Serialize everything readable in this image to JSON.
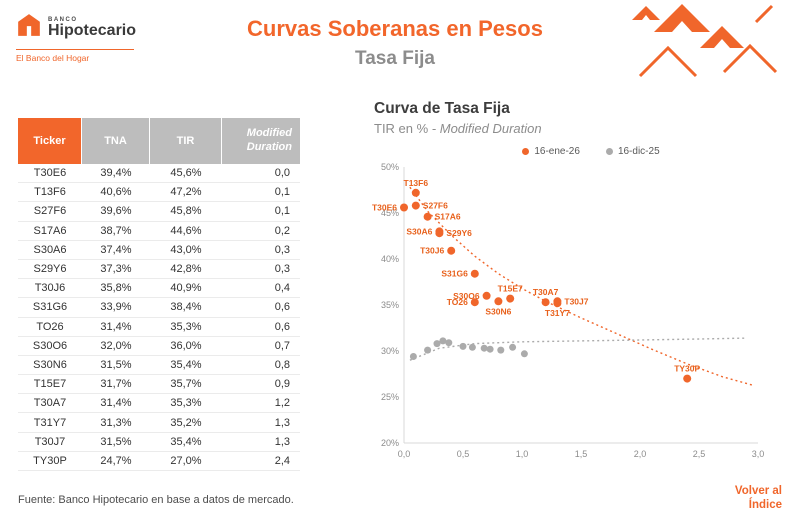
{
  "colors": {
    "accent": "#F0662B",
    "series_current": "#F0662B",
    "series_previous": "#ABABAB",
    "table_header_gray": "#BDBDBD"
  },
  "header": {
    "logo_small": "BANCO",
    "logo_name": "Hipotecario",
    "tagline": "El Banco del Hogar",
    "title": "Curvas Soberanas en Pesos",
    "subtitle": "Tasa Fija"
  },
  "table": {
    "headers": [
      "Ticker",
      "TNA",
      "TIR",
      "Modified Duration"
    ],
    "rows": [
      [
        "T30E6",
        "39,4%",
        "45,6%",
        "0,0"
      ],
      [
        "T13F6",
        "40,6%",
        "47,2%",
        "0,1"
      ],
      [
        "S27F6",
        "39,6%",
        "45,8%",
        "0,1"
      ],
      [
        "S17A6",
        "38,7%",
        "44,6%",
        "0,2"
      ],
      [
        "S30A6",
        "37,4%",
        "43,0%",
        "0,3"
      ],
      [
        "S29Y6",
        "37,3%",
        "42,8%",
        "0,3"
      ],
      [
        "T30J6",
        "35,8%",
        "40,9%",
        "0,4"
      ],
      [
        "S31G6",
        "33,9%",
        "38,4%",
        "0,6"
      ],
      [
        "TO26",
        "31,4%",
        "35,3%",
        "0,6"
      ],
      [
        "S30O6",
        "32,0%",
        "36,0%",
        "0,7"
      ],
      [
        "S30N6",
        "31,5%",
        "35,4%",
        "0,8"
      ],
      [
        "T15E7",
        "31,7%",
        "35,7%",
        "0,9"
      ],
      [
        "T30A7",
        "31,4%",
        "35,3%",
        "1,2"
      ],
      [
        "T31Y7",
        "31,3%",
        "35,2%",
        "1,3"
      ],
      [
        "T30J7",
        "31,5%",
        "35,4%",
        "1,3"
      ],
      [
        "TY30P",
        "24,7%",
        "27,0%",
        "2,4"
      ]
    ]
  },
  "chart_data": {
    "type": "scatter",
    "title": "Curva de Tasa Fija",
    "subtitle": "TIR en % - Modified Duration",
    "subtitle_plain": "TIR en % ",
    "subtitle_italic": "- Modified Duration",
    "xlabel": "Modified Duration",
    "ylabel": "TIR en %",
    "xlim": [
      0,
      3
    ],
    "ylim": [
      20,
      50
    ],
    "x_ticks": [
      "0,0",
      "0,5",
      "1,0",
      "1,5",
      "2,0",
      "2,5",
      "3,0"
    ],
    "y_ticks": [
      "20%",
      "25%",
      "30%",
      "35%",
      "40%",
      "45%",
      "50%"
    ],
    "grid": false,
    "legend_position": "top",
    "series": [
      {
        "name": "16-ene-26",
        "color": "#F0662B",
        "points": [
          {
            "label": "T30E6",
            "x": 0.0,
            "y": 45.6,
            "label_pos": "left"
          },
          {
            "label": "T13F6",
            "x": 0.1,
            "y": 47.2,
            "label_pos": "above"
          },
          {
            "label": "S27F6",
            "x": 0.1,
            "y": 45.8,
            "label_pos": "right"
          },
          {
            "label": "S17A6",
            "x": 0.2,
            "y": 44.6,
            "label_pos": "right"
          },
          {
            "label": "S30A6",
            "x": 0.3,
            "y": 43.0,
            "label_pos": "left"
          },
          {
            "label": "S29Y6",
            "x": 0.3,
            "y": 42.8,
            "label_pos": "right"
          },
          {
            "label": "T30J6",
            "x": 0.4,
            "y": 40.9,
            "label_pos": "left"
          },
          {
            "label": "S31G6",
            "x": 0.6,
            "y": 38.4,
            "label_pos": "left"
          },
          {
            "label": "TO26",
            "x": 0.6,
            "y": 35.3,
            "label_pos": "left"
          },
          {
            "label": "S30O6",
            "x": 0.7,
            "y": 36.0,
            "label_pos": "left"
          },
          {
            "label": "S30N6",
            "x": 0.8,
            "y": 35.4,
            "label_pos": "below"
          },
          {
            "label": "T15E7",
            "x": 0.9,
            "y": 35.7,
            "label_pos": "above"
          },
          {
            "label": "T30A7",
            "x": 1.2,
            "y": 35.3,
            "label_pos": "above"
          },
          {
            "label": "T31Y7",
            "x": 1.3,
            "y": 35.2,
            "label_pos": "below"
          },
          {
            "label": "T30J7",
            "x": 1.3,
            "y": 35.4,
            "label_pos": "right"
          },
          {
            "label": "TY30P",
            "x": 2.4,
            "y": 27.0,
            "label_pos": "above"
          }
        ]
      },
      {
        "name": "16-dic-25",
        "color": "#ABABAB",
        "points": [
          {
            "x": 0.08,
            "y": 29.4
          },
          {
            "x": 0.2,
            "y": 30.1
          },
          {
            "x": 0.28,
            "y": 30.8
          },
          {
            "x": 0.33,
            "y": 31.1
          },
          {
            "x": 0.38,
            "y": 30.9
          },
          {
            "x": 0.5,
            "y": 30.5
          },
          {
            "x": 0.58,
            "y": 30.4
          },
          {
            "x": 0.68,
            "y": 30.3
          },
          {
            "x": 0.73,
            "y": 30.2
          },
          {
            "x": 0.82,
            "y": 30.1
          },
          {
            "x": 0.92,
            "y": 30.4
          },
          {
            "x": 1.02,
            "y": 29.7
          }
        ]
      }
    ],
    "trendlines": [
      {
        "series": "16-ene-26",
        "color": "#F0662B",
        "points": [
          [
            0.05,
            47.8
          ],
          [
            0.2,
            45.2
          ],
          [
            0.4,
            42.6
          ],
          [
            0.6,
            40.3
          ],
          [
            0.8,
            38.4
          ],
          [
            1.0,
            36.8
          ],
          [
            1.2,
            35.4
          ],
          [
            1.5,
            33.6
          ],
          [
            1.8,
            31.9
          ],
          [
            2.1,
            30.2
          ],
          [
            2.4,
            28.6
          ],
          [
            2.7,
            27.2
          ],
          [
            2.95,
            26.3
          ]
        ]
      },
      {
        "series": "16-dic-25",
        "color": "#ABABAB",
        "points": [
          [
            0.05,
            29.0
          ],
          [
            0.3,
            30.3
          ],
          [
            0.6,
            30.8
          ],
          [
            1.0,
            31.0
          ],
          [
            1.5,
            31.1
          ],
          [
            2.0,
            31.2
          ],
          [
            2.5,
            31.3
          ],
          [
            2.9,
            31.4
          ]
        ]
      }
    ]
  },
  "footer": {
    "source": "Fuente: Banco Hipotecario en base a datos de mercado.",
    "back_link": "Volver al Índice"
  }
}
